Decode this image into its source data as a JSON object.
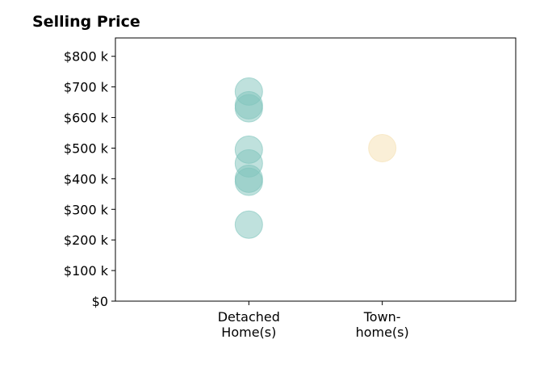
{
  "chart_data": {
    "type": "scatter",
    "title": "Selling Price",
    "xlabel": "",
    "ylabel": "",
    "categories": [
      "Detached\nHome(s)",
      "Town-\nhome(s)"
    ],
    "ylim": [
      0,
      860
    ],
    "xlim": [
      -1,
      2
    ],
    "yticks": [
      0,
      100,
      200,
      300,
      400,
      500,
      600,
      700,
      800
    ],
    "ytick_labels": [
      "$0",
      "$100 k",
      "$200 k",
      "$300 k",
      "$400 k",
      "$500 k",
      "$600 k",
      "$700 k",
      "$800 k"
    ],
    "grid": false,
    "series": [
      {
        "category": "Detached\nHome(s)",
        "color": "#7fc4bc",
        "values": [
          685,
          640,
          630,
          495,
          450,
          400,
          390,
          250
        ]
      },
      {
        "category": "Town-\nhome(s)",
        "color": "#f5dfb0",
        "values": [
          500
        ]
      }
    ]
  }
}
